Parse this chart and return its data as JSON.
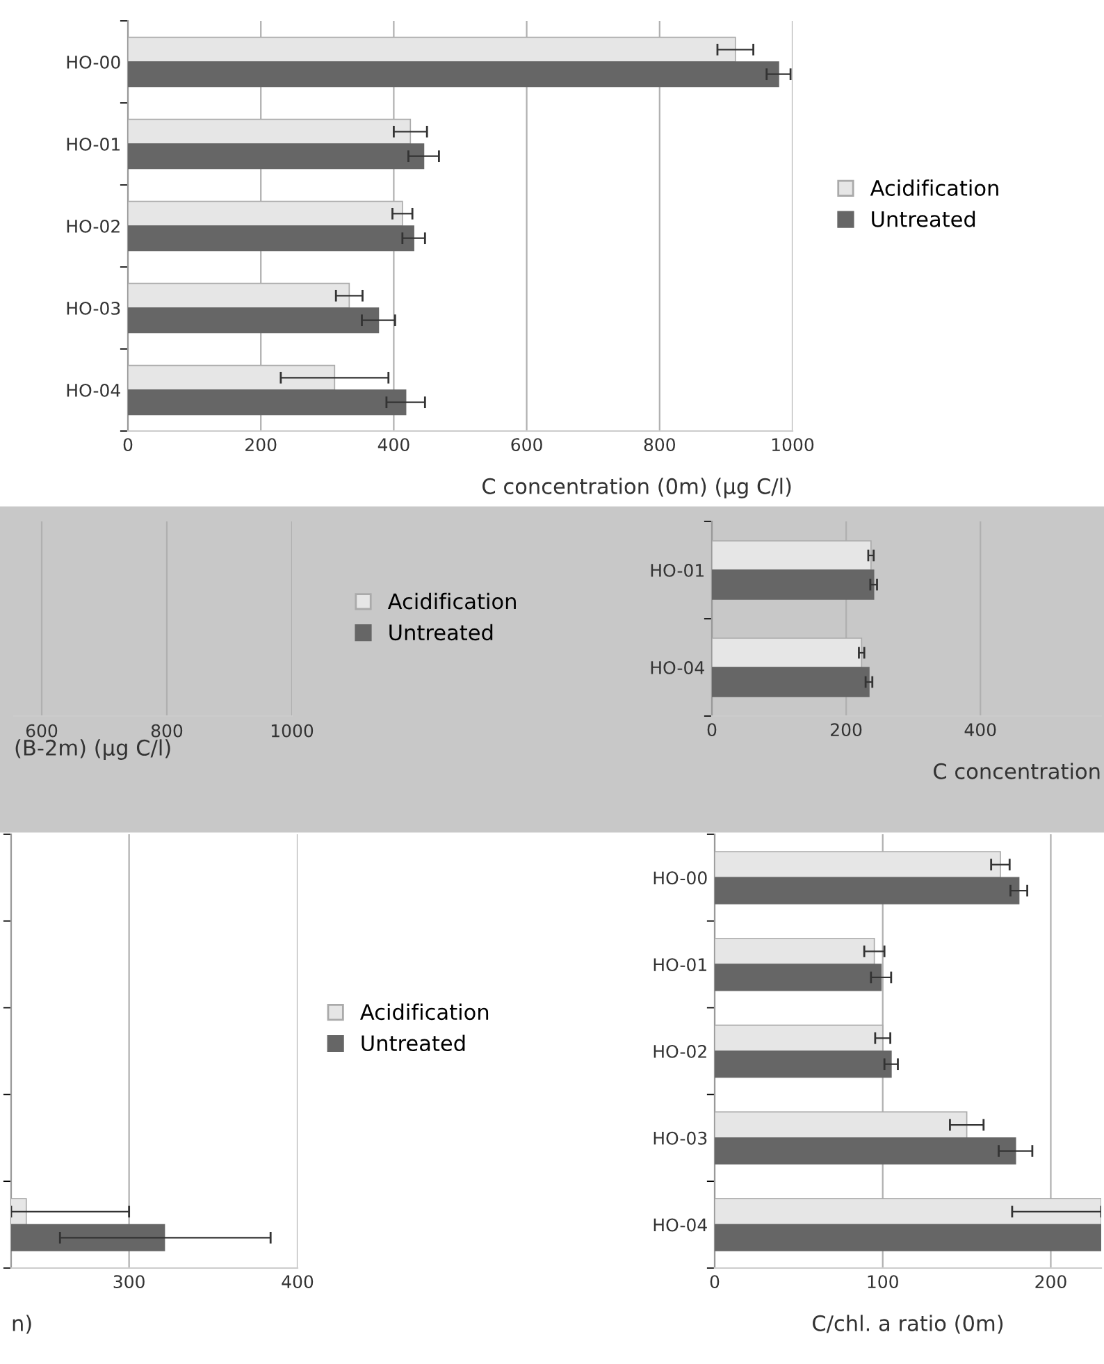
{
  "chart_data": [
    {
      "type": "bar",
      "orientation": "horizontal",
      "categories": [
        "HO-00",
        "HO-01",
        "HO-02",
        "HO-03",
        "HO-04"
      ],
      "series": [
        {
          "name": "Acidification",
          "color": "#e6e6e6",
          "values": [
            914,
            425,
            413,
            333,
            311
          ],
          "errors": [
            27,
            25,
            15,
            20,
            81
          ]
        },
        {
          "name": "Untreated",
          "color": "#666666",
          "values": [
            979,
            445,
            430,
            377,
            418
          ],
          "errors": [
            18,
            23,
            17,
            25,
            29
          ]
        }
      ],
      "xlim": [
        0,
        1000
      ],
      "xticks": [
        0,
        200,
        400,
        600,
        800,
        1000
      ],
      "xlabel": "C concentration (0m) (μg C/l)",
      "grid": "x",
      "legend": "right"
    },
    {
      "type": "other",
      "annotations": [
        "600",
        "800",
        "1000"
      ],
      "xlabel": "(B-2m) (μg C/l)"
    },
    {
      "type": "bar",
      "orientation": "horizontal",
      "categories": [
        "HO-01",
        "HO-04"
      ],
      "series": [
        {
          "name": "Acidification",
          "color": "#e6e6e6",
          "values": [
            237,
            223
          ],
          "errors": [
            4,
            4
          ]
        },
        {
          "name": "Untreated",
          "color": "#666666",
          "values": [
            241,
            234
          ],
          "errors": [
            5,
            5
          ]
        }
      ],
      "xlim": [
        0,
        580
      ],
      "xticks": [
        0,
        200,
        400
      ],
      "xlabel": "C concentration",
      "grid": "x",
      "legend": "left"
    },
    {
      "type": "bar",
      "orientation": "horizontal",
      "categories": [
        null,
        null,
        null,
        null,
        null
      ],
      "series": [
        {
          "name": "Acidification",
          "color": "#e6e6e6",
          "values": [
            null,
            null,
            null,
            null,
            239
          ],
          "errors": [
            null,
            null,
            null,
            null,
            [
              230,
              300
            ]
          ]
        },
        {
          "name": "Untreated",
          "color": "#666666",
          "values": [
            null,
            null,
            null,
            null,
            321
          ],
          "errors": [
            null,
            null,
            null,
            null,
            [
              259,
              384
            ]
          ]
        }
      ],
      "xlim": [
        230,
        400
      ],
      "xticks": [
        300,
        400
      ],
      "xlabel": "n)",
      "grid": "x",
      "legend": "right"
    },
    {
      "type": "bar",
      "orientation": "horizontal",
      "categories": [
        "HO-00",
        "HO-01",
        "HO-02",
        "HO-03",
        "HO-04"
      ],
      "series": [
        {
          "color": "#e6e6e6",
          "values": [
            170,
            95,
            100,
            150,
            230
          ],
          "errors": [
            5.5,
            6,
            4.5,
            10,
            [
              177,
              230
            ]
          ]
        },
        {
          "color": "#666666",
          "values": [
            181,
            99,
            105,
            179,
            230
          ],
          "errors": [
            5,
            6,
            4,
            10,
            null
          ]
        }
      ],
      "xlim": [
        0,
        230
      ],
      "xticks": [
        0,
        100,
        200
      ],
      "xlabel": "C/chl. a ratio (0m)",
      "grid": "x"
    }
  ]
}
